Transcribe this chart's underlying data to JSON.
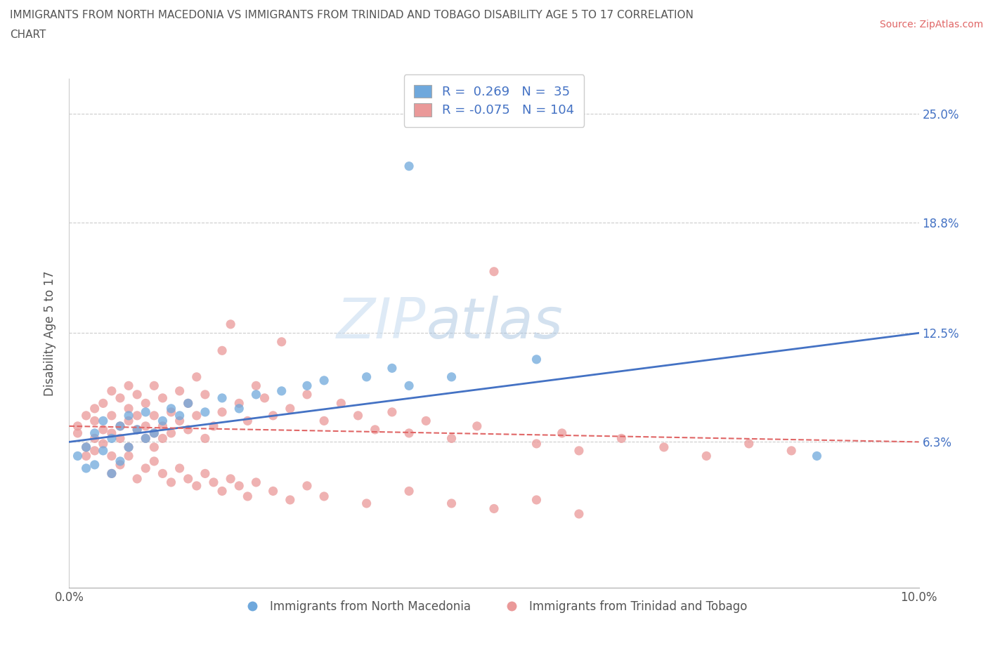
{
  "title_line1": "IMMIGRANTS FROM NORTH MACEDONIA VS IMMIGRANTS FROM TRINIDAD AND TOBAGO DISABILITY AGE 5 TO 17 CORRELATION",
  "title_line2": "CHART",
  "source_text": "Source: ZipAtlas.com",
  "ylabel": "Disability Age 5 to 17",
  "xlim": [
    0.0,
    0.1
  ],
  "ylim": [
    -0.02,
    0.27
  ],
  "yaxis_min": 0.0,
  "yaxis_max": 0.25,
  "ytick_vals": [
    0.0,
    0.063,
    0.125,
    0.188,
    0.25
  ],
  "ytick_labels": [
    "",
    "6.3%",
    "12.5%",
    "18.8%",
    "25.0%"
  ],
  "xtick_vals": [
    0.0,
    0.01,
    0.02,
    0.03,
    0.04,
    0.05,
    0.06,
    0.07,
    0.08,
    0.09,
    0.1
  ],
  "xtick_labels": [
    "0.0%",
    "",
    "",
    "",
    "",
    "",
    "",
    "",
    "",
    "",
    "10.0%"
  ],
  "series1_color": "#6fa8dc",
  "series2_color": "#ea9999",
  "line1_color": "#4472c4",
  "line2_color": "#e06666",
  "series1_R": 0.269,
  "series1_N": 35,
  "series2_R": -0.075,
  "series2_N": 104,
  "legend1_label": "Immigrants from North Macedonia",
  "legend2_label": "Immigrants from Trinidad and Tobago",
  "blue_scatter_x": [
    0.001,
    0.002,
    0.002,
    0.003,
    0.003,
    0.004,
    0.004,
    0.005,
    0.005,
    0.006,
    0.006,
    0.007,
    0.007,
    0.008,
    0.009,
    0.009,
    0.01,
    0.011,
    0.012,
    0.013,
    0.014,
    0.016,
    0.018,
    0.02,
    0.022,
    0.025,
    0.028,
    0.03,
    0.035,
    0.038,
    0.04,
    0.045,
    0.055,
    0.088,
    0.04
  ],
  "blue_scatter_y": [
    0.055,
    0.06,
    0.048,
    0.068,
    0.05,
    0.075,
    0.058,
    0.065,
    0.045,
    0.072,
    0.052,
    0.078,
    0.06,
    0.07,
    0.065,
    0.08,
    0.068,
    0.075,
    0.082,
    0.078,
    0.085,
    0.08,
    0.088,
    0.082,
    0.09,
    0.092,
    0.095,
    0.098,
    0.1,
    0.105,
    0.095,
    0.1,
    0.11,
    0.055,
    0.22
  ],
  "pink_scatter_x": [
    0.001,
    0.001,
    0.002,
    0.002,
    0.002,
    0.003,
    0.003,
    0.003,
    0.003,
    0.004,
    0.004,
    0.004,
    0.005,
    0.005,
    0.005,
    0.005,
    0.006,
    0.006,
    0.006,
    0.007,
    0.007,
    0.007,
    0.007,
    0.008,
    0.008,
    0.008,
    0.009,
    0.009,
    0.009,
    0.01,
    0.01,
    0.01,
    0.01,
    0.011,
    0.011,
    0.011,
    0.012,
    0.012,
    0.013,
    0.013,
    0.014,
    0.014,
    0.015,
    0.015,
    0.016,
    0.016,
    0.017,
    0.018,
    0.018,
    0.019,
    0.02,
    0.021,
    0.022,
    0.023,
    0.024,
    0.025,
    0.026,
    0.028,
    0.03,
    0.032,
    0.034,
    0.036,
    0.038,
    0.04,
    0.042,
    0.045,
    0.048,
    0.05,
    0.055,
    0.058,
    0.06,
    0.065,
    0.07,
    0.075,
    0.08,
    0.085,
    0.005,
    0.006,
    0.007,
    0.008,
    0.009,
    0.01,
    0.011,
    0.012,
    0.013,
    0.014,
    0.015,
    0.016,
    0.017,
    0.018,
    0.019,
    0.02,
    0.021,
    0.022,
    0.024,
    0.026,
    0.028,
    0.03,
    0.035,
    0.04,
    0.045,
    0.05,
    0.055,
    0.06
  ],
  "pink_scatter_y": [
    0.068,
    0.072,
    0.055,
    0.078,
    0.06,
    0.065,
    0.075,
    0.082,
    0.058,
    0.07,
    0.085,
    0.062,
    0.068,
    0.092,
    0.078,
    0.055,
    0.072,
    0.088,
    0.065,
    0.075,
    0.095,
    0.06,
    0.082,
    0.07,
    0.09,
    0.078,
    0.065,
    0.085,
    0.072,
    0.068,
    0.095,
    0.078,
    0.06,
    0.088,
    0.072,
    0.065,
    0.08,
    0.068,
    0.092,
    0.075,
    0.07,
    0.085,
    0.078,
    0.1,
    0.065,
    0.09,
    0.072,
    0.115,
    0.08,
    0.13,
    0.085,
    0.075,
    0.095,
    0.088,
    0.078,
    0.12,
    0.082,
    0.09,
    0.075,
    0.085,
    0.078,
    0.07,
    0.08,
    0.068,
    0.075,
    0.065,
    0.072,
    0.16,
    0.062,
    0.068,
    0.058,
    0.065,
    0.06,
    0.055,
    0.062,
    0.058,
    0.045,
    0.05,
    0.055,
    0.042,
    0.048,
    0.052,
    0.045,
    0.04,
    0.048,
    0.042,
    0.038,
    0.045,
    0.04,
    0.035,
    0.042,
    0.038,
    0.032,
    0.04,
    0.035,
    0.03,
    0.038,
    0.032,
    0.028,
    0.035,
    0.028,
    0.025,
    0.03,
    0.022
  ]
}
